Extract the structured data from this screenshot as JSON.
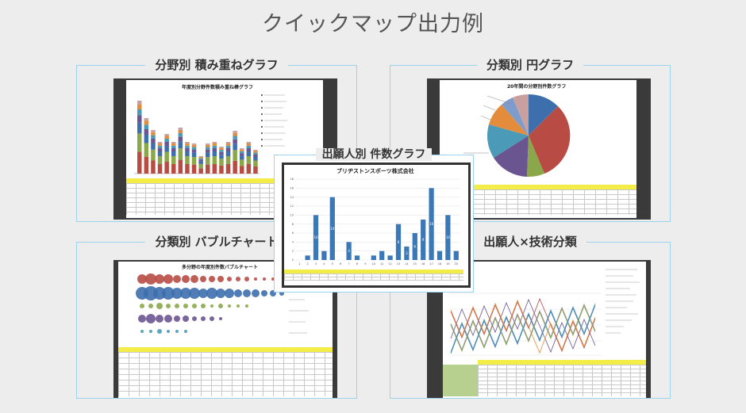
{
  "page": {
    "title": "クイックマップ出力例"
  },
  "panels": {
    "stacked": {
      "title": "分野別 積み重ねグラフ",
      "chart_title": "年度別分野件数積み重ね棒グラフ"
    },
    "pie": {
      "title": "分類別 円グラフ",
      "chart_title": "20年間の分野別件数グラフ"
    },
    "bubble": {
      "title": "分類別 バブルチャート",
      "chart_title": "多分野の年度別件数バブルチャート"
    },
    "tech": {
      "title": "出願人×技術分類"
    },
    "count": {
      "title": "出願人別 件数グラフ",
      "chart_title": "ブリヂストンスポーツ株式会社"
    }
  },
  "colors": {
    "panel_border": "#9cd3ea",
    "bar_blue": "#3a78b8",
    "sheet_header_yellow": "#f5ed47",
    "thumb_frame": "#3a3a3a"
  },
  "chart_data": {
    "type": "bar",
    "title": "ブリヂストンスポーツ株式会社",
    "categories": [
      "1",
      "2",
      "3",
      "4",
      "5",
      "6",
      "7",
      "8",
      "9",
      "10",
      "11",
      "12",
      "13",
      "14",
      "15",
      "16",
      "17",
      "18",
      "19",
      "20"
    ],
    "values": [
      0,
      1,
      10,
      2,
      14,
      0,
      4,
      1,
      0,
      1,
      2,
      1,
      8,
      3,
      6,
      9,
      16,
      2,
      10,
      2
    ],
    "ylim": [
      0,
      18
    ]
  }
}
